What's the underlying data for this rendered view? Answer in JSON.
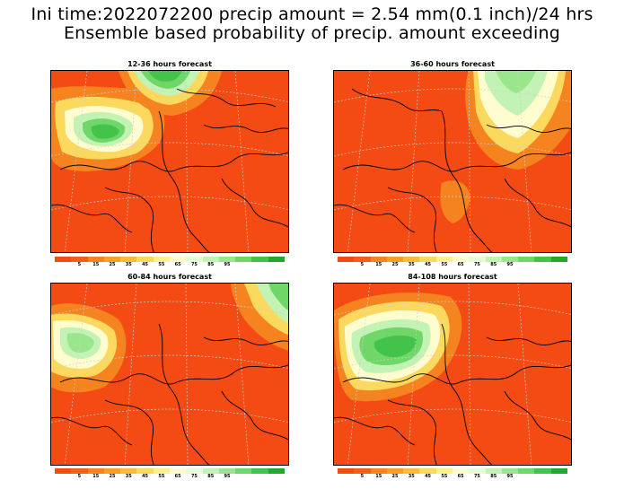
{
  "title_line1": "Ini time:2022072200 precip amount = 2.54 mm(0.1 inch)/24 hrs",
  "title_line2": "Ensemble based probability of precip. amount exceeding",
  "panels": [
    {
      "title": "12-36 hours forecast"
    },
    {
      "title": "36-60 hours forecast"
    },
    {
      "title": "60-84 hours forecast"
    },
    {
      "title": "84-108 hours forecast"
    }
  ],
  "colorbar": {
    "colors": [
      "#f44a13",
      "#f0601a",
      "#f5831f",
      "#f89f26",
      "#f9bd3b",
      "#fbd95e",
      "#fdf08e",
      "#fffdd0",
      "#e8fbd8",
      "#c2f2b4",
      "#9ae68c",
      "#6fd668",
      "#44c34a",
      "#22a82b"
    ],
    "labels": [
      "5",
      "15",
      "25",
      "35",
      "45",
      "55",
      "65",
      "75",
      "85",
      "95"
    ]
  },
  "fill_colors": {
    "base": "#f44a13",
    "orange": "#f5831f",
    "light_orange": "#f89f26",
    "yellow": "#fbd95e",
    "cream": "#fffdd0",
    "pale_green": "#c2f2b4",
    "green": "#6fd668",
    "dark_green": "#44c34a"
  }
}
